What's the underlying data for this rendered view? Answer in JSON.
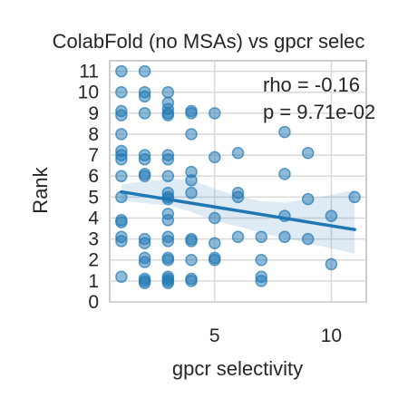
{
  "chart_data": {
    "type": "scatter",
    "title": "ColabFold (no MSAs) vs gpcr selec",
    "xlabel": "gpcr selectivity",
    "ylabel": "Rank",
    "xlim": [
      0.5,
      11.5
    ],
    "ylim": [
      0,
      11.5
    ],
    "xticks": [
      5,
      10
    ],
    "yticks": [
      0,
      1,
      2,
      3,
      4,
      5,
      6,
      7,
      8,
      9,
      10,
      11
    ],
    "grid": true,
    "annotations": [
      "rho = -0.16",
      "p = 9.71e-02"
    ],
    "regression": {
      "x": [
        1,
        11
      ],
      "y": [
        5.25,
        3.45
      ]
    },
    "confidence_band": {
      "x": [
        1,
        2,
        3,
        4,
        5,
        6,
        7,
        8,
        9,
        10,
        11
      ],
      "upper": [
        5.6,
        5.75,
        5.85,
        5.8,
        5.4,
        5.05,
        4.8,
        4.75,
        4.9,
        5.1,
        5.35
      ],
      "lower": [
        4.85,
        4.7,
        4.6,
        4.3,
        3.85,
        3.6,
        3.3,
        3.05,
        2.8,
        2.55,
        2.3
      ]
    },
    "colors": {
      "points": "#1f77b4",
      "line": "#1f77b4",
      "band": "#1f77b4",
      "grid": "#d9d9d9",
      "frame": "#cccccc"
    },
    "points": [
      [
        1,
        11
      ],
      [
        2,
        11
      ],
      [
        1,
        10
      ],
      [
        2,
        10
      ],
      [
        2,
        9.8
      ],
      [
        3,
        10
      ],
      [
        3,
        9.5
      ],
      [
        1,
        9.1
      ],
      [
        1,
        8.9
      ],
      [
        2,
        9
      ],
      [
        3,
        9.2
      ],
      [
        3,
        8.9
      ],
      [
        3,
        9.0
      ],
      [
        4,
        9.1
      ],
      [
        4,
        9.0
      ],
      [
        5,
        9
      ],
      [
        1,
        8
      ],
      [
        4,
        8
      ],
      [
        8,
        8.1
      ],
      [
        1,
        7.2
      ],
      [
        1,
        7
      ],
      [
        1,
        6.8
      ],
      [
        2,
        7
      ],
      [
        2,
        6.8
      ],
      [
        3,
        7
      ],
      [
        3,
        6.8
      ],
      [
        5,
        6.9
      ],
      [
        6,
        7.1
      ],
      [
        9,
        7.1
      ],
      [
        1,
        6
      ],
      [
        2,
        6
      ],
      [
        2,
        6.1
      ],
      [
        3,
        6
      ],
      [
        4,
        6.2
      ],
      [
        4,
        5.8
      ],
      [
        8,
        6.1
      ],
      [
        1,
        5
      ],
      [
        3,
        5.2
      ],
      [
        3,
        5.0
      ],
      [
        3,
        4.9
      ],
      [
        4,
        5.2
      ],
      [
        6,
        5.2
      ],
      [
        6,
        5.0
      ],
      [
        9,
        4.9
      ],
      [
        11,
        5
      ],
      [
        1,
        3.9
      ],
      [
        1,
        3.8
      ],
      [
        3,
        4.2
      ],
      [
        3,
        3.9
      ],
      [
        5,
        4
      ],
      [
        8,
        4.1
      ],
      [
        10,
        4.1
      ],
      [
        1,
        3.1
      ],
      [
        1,
        2.9
      ],
      [
        2,
        3
      ],
      [
        2,
        2.8
      ],
      [
        3,
        3.1
      ],
      [
        3,
        2.9
      ],
      [
        4,
        3
      ],
      [
        4,
        2.9
      ],
      [
        5,
        2.8
      ],
      [
        6,
        3.1
      ],
      [
        7,
        3.1
      ],
      [
        8,
        3.1
      ],
      [
        9,
        3
      ],
      [
        2,
        2.1
      ],
      [
        2,
        1.9
      ],
      [
        3,
        2
      ],
      [
        3,
        2.1
      ],
      [
        4,
        2
      ],
      [
        5,
        2
      ],
      [
        5,
        2.1
      ],
      [
        7,
        2
      ],
      [
        10,
        1.8
      ],
      [
        1,
        1.2
      ],
      [
        2,
        1.1
      ],
      [
        2,
        1.0
      ],
      [
        2,
        0.9
      ],
      [
        3,
        1.2
      ],
      [
        3,
        1.1
      ],
      [
        3,
        1.0
      ],
      [
        3,
        0.9
      ],
      [
        4,
        1.1
      ],
      [
        4,
        1.0
      ],
      [
        7,
        1.2
      ],
      [
        7,
        1.0
      ]
    ]
  }
}
